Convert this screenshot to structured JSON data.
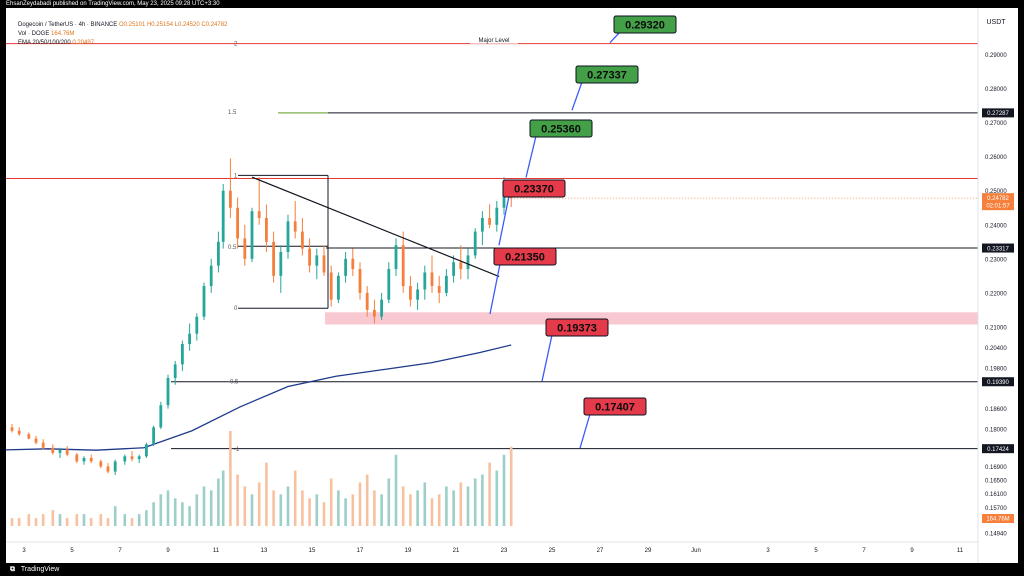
{
  "header": {
    "publisher_line": "EhsanZeydabadi published on TradingView.com, May 23, 2025 09:28 UTC+3:30"
  },
  "legend": {
    "symbol": "Dogecoin / TetherUS · 4h · BINANCE",
    "ohlc_o": "O0.25101",
    "ohlc_h": "H0.25154",
    "ohlc_l": "L0.24520",
    "ohlc_c": "C0.24782",
    "vol_label": "Vol · DOGE",
    "vol_value": "164.76M",
    "ema_label": "EMA 20/50/100/200",
    "ema_value": "0.20497"
  },
  "footer": {
    "brand": "TradingView"
  },
  "colors": {
    "bull": "#26a69a",
    "bear": "#f57f3b",
    "resistance_red": "#e53935",
    "ema": "#1e3a8a",
    "green_tag": "#43a047",
    "red_tag": "#e53a4a",
    "zone_pink": "#f8bbc5"
  },
  "chart_data": {
    "type": "candlestick",
    "currency_label": "USDT",
    "price_axis": {
      "range": [
        0.148,
        0.3025
      ],
      "ticks": [
        "0.29000",
        "0.28000",
        "0.27000",
        "0.26000",
        "0.25000",
        "0.24000",
        "0.23000",
        "0.22000",
        "0.21000",
        "0.20400",
        "0.19800",
        "0.18600",
        "0.18000",
        "0.16900",
        "0.16500",
        "0.16100",
        "0.15700",
        "0.14940"
      ]
    },
    "time_axis": {
      "ticks": [
        "3",
        "5",
        "7",
        "9",
        "11",
        "13",
        "15",
        "17",
        "19",
        "21",
        "23",
        "25",
        "27",
        "29",
        "Jun",
        "3",
        "5",
        "7",
        "9",
        "11"
      ]
    },
    "annotations": [
      {
        "label": "0.29320",
        "price": 0.2932,
        "kind": "target-green"
      },
      {
        "label": "0.27337",
        "price": 0.27337,
        "kind": "target-green"
      },
      {
        "label": "0.25360",
        "price": 0.2536,
        "kind": "target-green"
      },
      {
        "label": "0.23370",
        "price": 0.2337,
        "kind": "support-red"
      },
      {
        "label": "0.21350",
        "price": 0.2135,
        "kind": "support-red"
      },
      {
        "label": "0.19373",
        "price": 0.19373,
        "kind": "support-red"
      },
      {
        "label": "0.17407",
        "price": 0.17407,
        "kind": "support-red"
      }
    ],
    "horizontal_levels": [
      {
        "price": 0.2932,
        "color": "red",
        "label": "Major Level"
      },
      {
        "price": 0.27287,
        "color": "black"
      },
      {
        "price": 0.2536,
        "color": "red"
      },
      {
        "price": 0.23317,
        "color": "black"
      },
      {
        "price": 0.1939,
        "color": "black"
      },
      {
        "price": 0.17424,
        "color": "black"
      }
    ],
    "price_badges": [
      {
        "price": 0.27287,
        "label": "0.27287"
      },
      {
        "price": 0.23317,
        "label": "0.23317"
      },
      {
        "price": 0.1939,
        "label": "0.19390"
      },
      {
        "price": 0.17424,
        "label": "0.17424"
      }
    ],
    "current_price": {
      "value": 0.24782,
      "label": "0.24782",
      "countdown": "02:01:57"
    },
    "volume_badge": "164.76M",
    "fib_labels": [
      "2",
      "1.5",
      "1",
      "0.5",
      "0",
      "-0.5",
      "-1"
    ],
    "zone": {
      "low": 0.2107,
      "high": 0.2143
    },
    "trendline": {
      "from": [
        12.5,
        0.254
      ],
      "to": [
        22.8,
        0.2248
      ]
    },
    "ema_200": [
      [
        0,
        0.1735
      ],
      [
        4,
        0.1742
      ],
      [
        6,
        0.1738
      ],
      [
        8,
        0.1745
      ],
      [
        10,
        0.1795
      ],
      [
        12,
        0.1865
      ],
      [
        14,
        0.1925
      ],
      [
        16,
        0.1955
      ],
      [
        18,
        0.1975
      ],
      [
        20,
        0.1995
      ],
      [
        22,
        0.2025
      ],
      [
        23.3,
        0.2047
      ]
    ],
    "candles": [
      [
        1.8,
        0.1808,
        0.182,
        0.1795,
        0.1812
      ],
      [
        2.2,
        0.1812,
        0.183,
        0.18,
        0.1805
      ],
      [
        2.5,
        0.1805,
        0.1815,
        0.179,
        0.1795
      ],
      [
        2.8,
        0.1795,
        0.1805,
        0.178,
        0.1785
      ],
      [
        3.2,
        0.1785,
        0.179,
        0.177,
        0.1772
      ],
      [
        3.5,
        0.1772,
        0.178,
        0.1755,
        0.176
      ],
      [
        3.8,
        0.176,
        0.177,
        0.174,
        0.1745
      ],
      [
        4.2,
        0.1745,
        0.1755,
        0.1725,
        0.173
      ],
      [
        4.5,
        0.173,
        0.1745,
        0.1715,
        0.174
      ],
      [
        4.8,
        0.174,
        0.175,
        0.172,
        0.1725
      ],
      [
        5.2,
        0.1725,
        0.173,
        0.17,
        0.1705
      ],
      [
        5.5,
        0.1705,
        0.172,
        0.1695,
        0.1715
      ],
      [
        5.8,
        0.1715,
        0.1725,
        0.17,
        0.1705
      ],
      [
        6.2,
        0.1705,
        0.171,
        0.1685,
        0.169
      ],
      [
        6.5,
        0.169,
        0.17,
        0.167,
        0.1675
      ],
      [
        6.8,
        0.1675,
        0.171,
        0.1665,
        0.1705
      ],
      [
        7.2,
        0.1705,
        0.1725,
        0.1695,
        0.172
      ],
      [
        7.5,
        0.172,
        0.1735,
        0.1705,
        0.1712
      ],
      [
        7.8,
        0.1712,
        0.1725,
        0.17,
        0.172
      ],
      [
        8.1,
        0.172,
        0.176,
        0.1715,
        0.1755
      ],
      [
        8.4,
        0.1755,
        0.181,
        0.175,
        0.1805
      ],
      [
        8.7,
        0.1805,
        0.188,
        0.18,
        0.187
      ],
      [
        9.0,
        0.187,
        0.196,
        0.186,
        0.195
      ],
      [
        9.3,
        0.195,
        0.2,
        0.193,
        0.199
      ],
      [
        9.6,
        0.199,
        0.206,
        0.197,
        0.205
      ],
      [
        9.9,
        0.205,
        0.211,
        0.203,
        0.208
      ],
      [
        10.2,
        0.208,
        0.214,
        0.206,
        0.213
      ],
      [
        10.5,
        0.213,
        0.223,
        0.212,
        0.222
      ],
      [
        10.8,
        0.222,
        0.23,
        0.22,
        0.228
      ],
      [
        11.1,
        0.228,
        0.238,
        0.226,
        0.235
      ],
      [
        11.3,
        0.235,
        0.252,
        0.233,
        0.25
      ],
      [
        11.6,
        0.25,
        0.2595,
        0.242,
        0.245
      ],
      [
        11.9,
        0.245,
        0.248,
        0.233,
        0.236
      ],
      [
        12.2,
        0.236,
        0.24,
        0.228,
        0.23
      ],
      [
        12.5,
        0.23,
        0.245,
        0.229,
        0.244
      ],
      [
        12.8,
        0.244,
        0.254,
        0.24,
        0.242
      ],
      [
        13.1,
        0.242,
        0.246,
        0.232,
        0.235
      ],
      [
        13.4,
        0.235,
        0.238,
        0.223,
        0.225
      ],
      [
        13.7,
        0.225,
        0.234,
        0.22,
        0.232
      ],
      [
        14.0,
        0.232,
        0.243,
        0.23,
        0.241
      ],
      [
        14.3,
        0.241,
        0.247,
        0.236,
        0.238
      ],
      [
        14.6,
        0.238,
        0.242,
        0.231,
        0.233
      ],
      [
        14.9,
        0.233,
        0.236,
        0.226,
        0.228
      ],
      [
        15.2,
        0.228,
        0.233,
        0.224,
        0.231
      ],
      [
        15.5,
        0.231,
        0.234,
        0.225,
        0.226
      ],
      [
        15.8,
        0.226,
        0.228,
        0.216,
        0.218
      ],
      [
        16.1,
        0.218,
        0.226,
        0.217,
        0.225
      ],
      [
        16.4,
        0.225,
        0.232,
        0.223,
        0.23
      ],
      [
        16.7,
        0.23,
        0.233,
        0.225,
        0.227
      ],
      [
        17.0,
        0.227,
        0.229,
        0.218,
        0.22
      ],
      [
        17.3,
        0.22,
        0.222,
        0.213,
        0.215
      ],
      [
        17.6,
        0.215,
        0.218,
        0.211,
        0.213
      ],
      [
        17.9,
        0.213,
        0.22,
        0.212,
        0.218
      ],
      [
        18.2,
        0.218,
        0.229,
        0.217,
        0.227
      ],
      [
        18.5,
        0.227,
        0.236,
        0.225,
        0.234
      ],
      [
        18.8,
        0.234,
        0.238,
        0.22,
        0.222
      ],
      [
        19.1,
        0.222,
        0.225,
        0.216,
        0.218
      ],
      [
        19.4,
        0.218,
        0.223,
        0.215,
        0.221
      ],
      [
        19.7,
        0.221,
        0.228,
        0.218,
        0.226
      ],
      [
        20.0,
        0.226,
        0.231,
        0.22,
        0.222
      ],
      [
        20.3,
        0.222,
        0.225,
        0.217,
        0.22
      ],
      [
        20.6,
        0.22,
        0.227,
        0.219,
        0.225
      ],
      [
        20.9,
        0.225,
        0.231,
        0.223,
        0.229
      ],
      [
        21.2,
        0.229,
        0.234,
        0.224,
        0.227
      ],
      [
        21.5,
        0.227,
        0.233,
        0.224,
        0.231
      ],
      [
        21.8,
        0.231,
        0.239,
        0.23,
        0.238
      ],
      [
        22.1,
        0.238,
        0.244,
        0.234,
        0.242
      ],
      [
        22.4,
        0.242,
        0.246,
        0.239,
        0.24
      ],
      [
        22.7,
        0.24,
        0.247,
        0.238,
        0.245
      ],
      [
        23.0,
        0.245,
        0.254,
        0.243,
        0.251
      ],
      [
        23.3,
        0.251,
        0.2515,
        0.2452,
        0.2478
      ]
    ],
    "volumes": [
      3,
      2,
      2,
      2,
      3,
      2,
      3,
      4,
      3,
      2,
      3,
      3,
      2,
      3,
      2,
      5,
      3,
      2,
      3,
      4,
      6,
      8,
      9,
      7,
      6,
      5,
      8,
      10,
      9,
      12,
      14,
      24,
      13,
      10,
      8,
      11,
      16,
      9,
      8,
      10,
      14,
      9,
      7,
      8,
      6,
      12,
      9,
      7,
      8,
      11,
      13,
      9,
      8,
      12,
      18,
      10,
      8,
      9,
      11,
      7,
      8,
      10,
      9,
      11,
      10,
      12,
      13,
      16,
      14,
      18,
      20
    ]
  }
}
